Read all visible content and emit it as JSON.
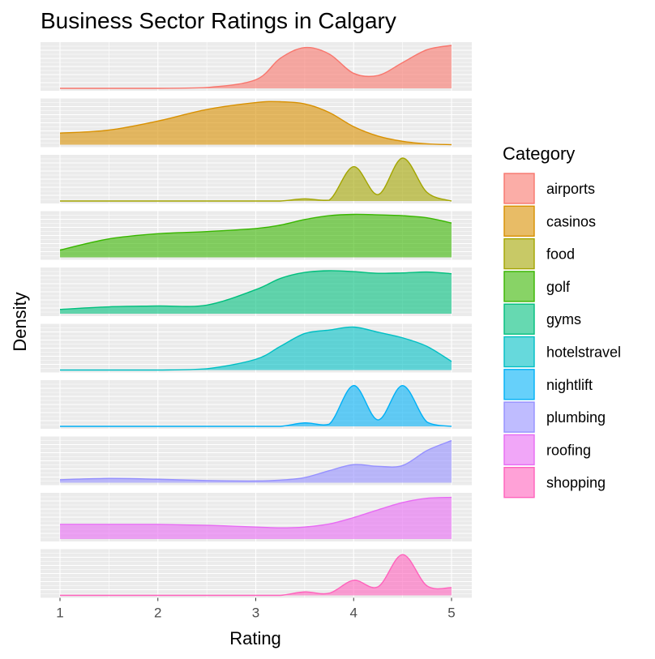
{
  "chart_data": {
    "type": "area",
    "title": "Business Sector Ratings in Calgary",
    "xlabel": "Rating",
    "ylabel": "Density",
    "xlim": [
      1,
      5
    ],
    "xticks": [
      "1",
      "2",
      "3",
      "4",
      "5"
    ],
    "grid": true,
    "legend": {
      "title": "Category",
      "placement": "right"
    },
    "x": [
      1,
      1.5,
      2,
      2.5,
      3,
      3.25,
      3.5,
      3.75,
      4,
      4.25,
      4.5,
      4.75,
      5
    ],
    "series": [
      {
        "name": "airports",
        "color": "#F8766D",
        "values": [
          0.0,
          0.0,
          0.0,
          0.02,
          0.2,
          0.7,
          0.95,
          0.8,
          0.35,
          0.3,
          0.6,
          0.9,
          1.0
        ]
      },
      {
        "name": "casinos",
        "color": "#D89000",
        "values": [
          0.27,
          0.34,
          0.55,
          0.82,
          0.98,
          1.0,
          0.95,
          0.75,
          0.42,
          0.2,
          0.08,
          0.02,
          0.0
        ]
      },
      {
        "name": "food",
        "color": "#A3A500",
        "values": [
          0.0,
          0.0,
          0.0,
          0.0,
          0.0,
          0.0,
          0.05,
          0.02,
          0.8,
          0.15,
          1.0,
          0.2,
          0.0
        ]
      },
      {
        "name": "golf",
        "color": "#39B600",
        "values": [
          0.17,
          0.43,
          0.55,
          0.6,
          0.67,
          0.75,
          0.88,
          0.97,
          1.0,
          0.99,
          0.97,
          0.92,
          0.8
        ]
      },
      {
        "name": "gyms",
        "color": "#00BF7D",
        "values": [
          0.1,
          0.16,
          0.18,
          0.2,
          0.56,
          0.82,
          0.96,
          1.0,
          0.98,
          0.94,
          0.95,
          0.97,
          0.93
        ]
      },
      {
        "name": "hotelstravel",
        "color": "#00BFC4",
        "values": [
          0.0,
          0.0,
          0.0,
          0.03,
          0.25,
          0.55,
          0.85,
          0.93,
          1.0,
          0.88,
          0.75,
          0.55,
          0.2
        ]
      },
      {
        "name": "nightlift",
        "color": "#00B0F6",
        "values": [
          0.0,
          0.0,
          0.0,
          0.0,
          0.0,
          0.0,
          0.08,
          0.05,
          0.95,
          0.15,
          0.95,
          0.1,
          0.0
        ]
      },
      {
        "name": "plumbing",
        "color": "#9590FF",
        "values": [
          0.07,
          0.1,
          0.08,
          0.05,
          0.04,
          0.06,
          0.12,
          0.28,
          0.42,
          0.38,
          0.4,
          0.75,
          0.98
        ]
      },
      {
        "name": "roofing",
        "color": "#E76BF3",
        "values": [
          0.34,
          0.34,
          0.34,
          0.32,
          0.28,
          0.26,
          0.28,
          0.35,
          0.5,
          0.68,
          0.85,
          0.95,
          0.97
        ]
      },
      {
        "name": "shopping",
        "color": "#FF62BC",
        "values": [
          0.0,
          0.0,
          0.0,
          0.0,
          0.0,
          0.0,
          0.08,
          0.05,
          0.35,
          0.2,
          0.95,
          0.22,
          0.18
        ]
      }
    ]
  }
}
